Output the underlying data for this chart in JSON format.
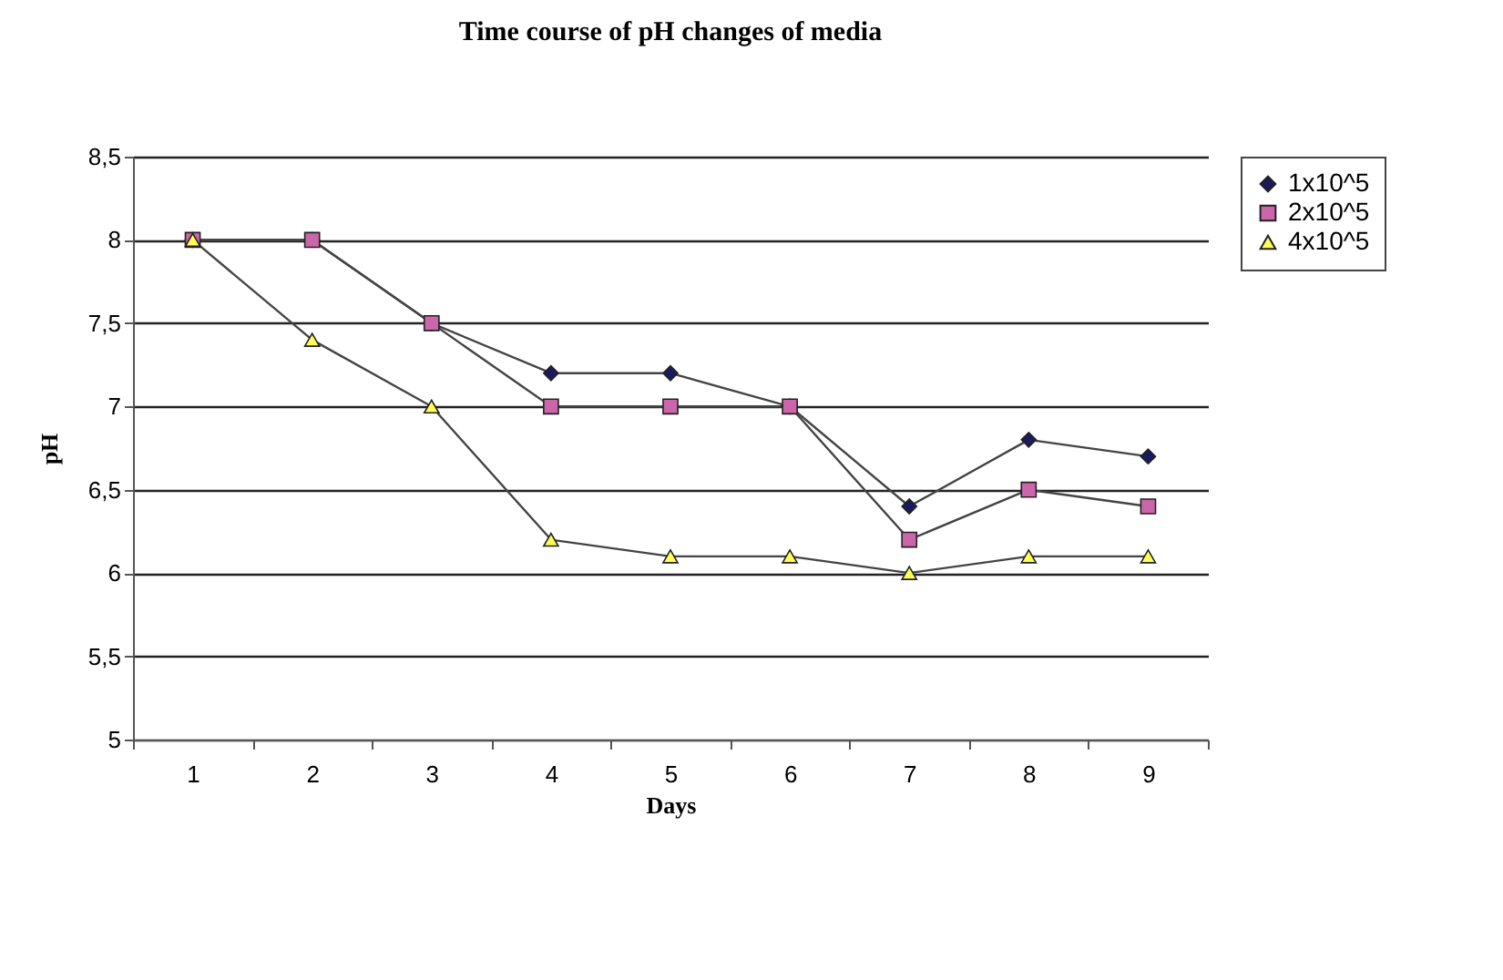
{
  "chart_data": {
    "type": "line",
    "title": "Time course of pH changes of media",
    "xlabel": "Days",
    "ylabel": "pH",
    "categories": [
      "1",
      "2",
      "3",
      "4",
      "5",
      "6",
      "7",
      "8",
      "9"
    ],
    "series": [
      {
        "name": "1x10^5",
        "color": "#1a1a5e",
        "marker": "diamond",
        "values": [
          8,
          8,
          7.5,
          7.2,
          7.2,
          7.0,
          6.4,
          6.8,
          6.7
        ]
      },
      {
        "name": "2x10^5",
        "color": "#cc66aa",
        "marker": "square",
        "values": [
          8,
          8,
          7.5,
          7.0,
          7.0,
          7.0,
          6.2,
          6.5,
          6.4
        ]
      },
      {
        "name": "4x10^5",
        "color": "#ffff55",
        "marker": "triangle",
        "values": [
          8,
          7.4,
          7.0,
          6.2,
          6.1,
          6.1,
          6.0,
          6.1,
          6.1
        ]
      }
    ],
    "ylim": [
      5,
      8.5
    ],
    "yticks": [
      5,
      {
        "value": 5.5,
        "label": "5,5"
      },
      6,
      {
        "value": 6.5,
        "label": "6,5"
      },
      7,
      {
        "value": 7.5,
        "label": "7,5"
      },
      8,
      {
        "value": 8.5,
        "label": "8,5"
      }
    ],
    "grid": "y",
    "legend": "right",
    "line_style": "solid"
  }
}
